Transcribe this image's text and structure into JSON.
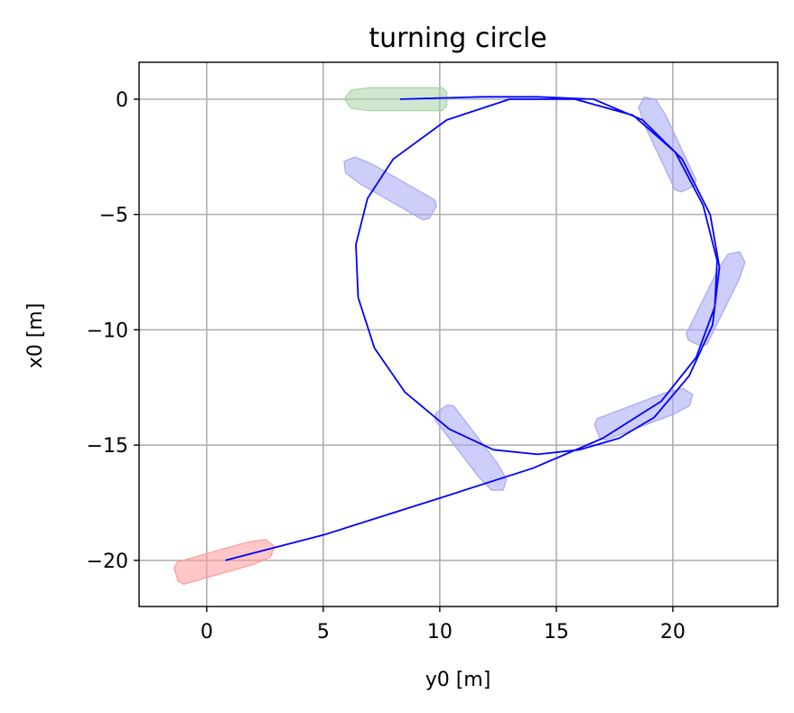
{
  "chart_data": {
    "type": "line",
    "title": "turning circle",
    "xlabel": "y0 [m]",
    "ylabel": "x0 [m]",
    "xlim": [
      -2.9,
      24.5
    ],
    "ylim": [
      -22.0,
      1.6
    ],
    "xticks": [
      0,
      5,
      10,
      15,
      20
    ],
    "yticks": [
      0,
      -5,
      -10,
      -15,
      -20
    ],
    "xtick_labels": [
      "0",
      "5",
      "10",
      "15",
      "20"
    ],
    "ytick_labels": [
      "0",
      "−5",
      "−10",
      "−15",
      "−20"
    ],
    "grid": true,
    "colors": {
      "path": "#0000ff",
      "start_ship": "#ff9999",
      "mid_ship": "#a6a6f5",
      "end_ship": "#a8d4a8",
      "grid": "#b0b0b0"
    },
    "series": [
      {
        "points": [
          [
            0.8,
            -20.0
          ],
          [
            5.0,
            -18.9
          ],
          [
            10.0,
            -17.3
          ],
          [
            14.0,
            -16.0
          ],
          [
            17.0,
            -14.7
          ],
          [
            19.5,
            -13.1
          ],
          [
            21.0,
            -11.2
          ],
          [
            21.8,
            -9.0
          ],
          [
            21.9,
            -7.0
          ],
          [
            21.3,
            -4.6
          ],
          [
            20.1,
            -2.3
          ],
          [
            18.3,
            -0.7
          ],
          [
            15.8,
            0.0
          ],
          [
            13.0,
            0.0
          ],
          [
            10.3,
            -0.9
          ],
          [
            8.0,
            -2.6
          ],
          [
            6.9,
            -4.3
          ],
          [
            6.4,
            -6.3
          ],
          [
            6.5,
            -8.6
          ],
          [
            7.2,
            -10.8
          ],
          [
            8.5,
            -12.7
          ],
          [
            10.4,
            -14.3
          ],
          [
            12.3,
            -15.2
          ],
          [
            14.2,
            -15.4
          ],
          [
            16.0,
            -15.2
          ],
          [
            17.7,
            -14.7
          ],
          [
            19.2,
            -13.8
          ],
          [
            20.7,
            -12.0
          ],
          [
            21.7,
            -9.8
          ],
          [
            22.0,
            -7.3
          ],
          [
            21.6,
            -5.0
          ],
          [
            20.4,
            -2.6
          ],
          [
            18.7,
            -0.9
          ],
          [
            16.6,
            0.0
          ],
          [
            14.2,
            0.1
          ],
          [
            11.8,
            0.1
          ],
          [
            8.3,
            0.0
          ]
        ]
      }
    ],
    "ships": [
      {
        "role": "start",
        "y": 0.8,
        "x": -20.0,
        "heading_deg": 16
      },
      {
        "role": "intermediate",
        "y": 11.4,
        "x": -15.2,
        "heading_deg": -53
      },
      {
        "role": "intermediate",
        "y": 18.8,
        "x": -13.6,
        "heading_deg": 21
      },
      {
        "role": "intermediate",
        "y": 21.9,
        "x": -8.6,
        "heading_deg": 64
      },
      {
        "role": "intermediate",
        "y": 19.7,
        "x": -1.9,
        "heading_deg": 115
      },
      {
        "role": "intermediate",
        "y": 7.8,
        "x": -3.8,
        "heading_deg": 150
      },
      {
        "role": "end",
        "y": 8.1,
        "x": 0.0,
        "heading_deg": 180
      }
    ]
  }
}
